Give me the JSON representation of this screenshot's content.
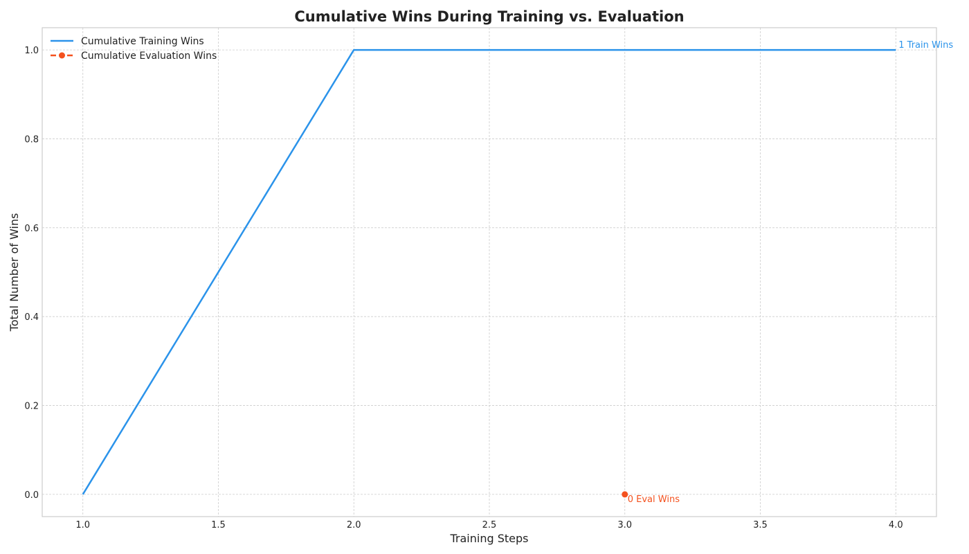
{
  "chart_data": {
    "type": "line",
    "title": "Cumulative Wins During Training vs. Evaluation",
    "xlabel": "Training Steps",
    "ylabel": "Total Number of Wins",
    "xlim": [
      0.85,
      4.15
    ],
    "ylim": [
      -0.05,
      1.05
    ],
    "xticks": [
      1.0,
      1.5,
      2.0,
      2.5,
      3.0,
      3.5,
      4.0
    ],
    "xtick_labels": [
      "1.0",
      "1.5",
      "2.0",
      "2.5",
      "3.0",
      "3.5",
      "4.0"
    ],
    "yticks": [
      0.0,
      0.2,
      0.4,
      0.6,
      0.8,
      1.0
    ],
    "ytick_labels": [
      "0.0",
      "0.2",
      "0.4",
      "0.6",
      "0.8",
      "1.0"
    ],
    "grid": true,
    "legend_position": "top-left",
    "series": [
      {
        "name": "Cumulative Training Wins",
        "color": "#2b93ea",
        "style": "solid",
        "marker": "none",
        "x": [
          1,
          2,
          3,
          4
        ],
        "y": [
          0,
          1,
          1,
          1
        ]
      },
      {
        "name": "Cumulative Evaluation Wins",
        "color": "#f4511e",
        "style": "dashed",
        "marker": "circle",
        "x": [
          3
        ],
        "y": [
          0
        ]
      }
    ],
    "annotations": [
      {
        "text": "1 Train Wins",
        "x": 4,
        "y": 1,
        "color": "#2b93ea"
      },
      {
        "text": "0 Eval Wins",
        "x": 3,
        "y": 0,
        "color": "#f4511e"
      }
    ]
  }
}
